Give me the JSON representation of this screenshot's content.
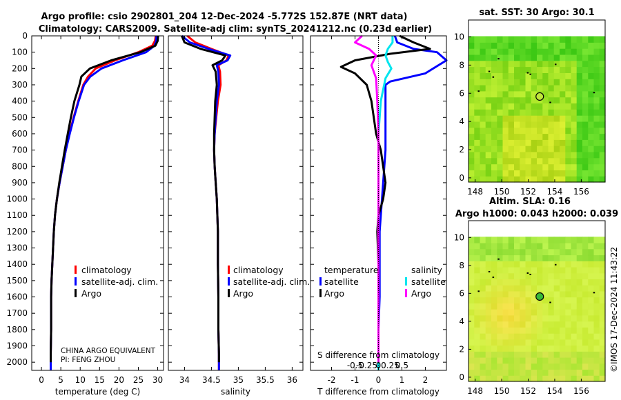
{
  "titles": {
    "line1": "Argo profile: csio 2902801_204 12-Dec-2024 -5.772S 152.87E (NRT data)",
    "line2": "Climatology: CARS2009. Satellite-adj clim: synTS_20241212.nc (0.23d earlier)",
    "map1": "sat. SST: 30 Argo: 30.1",
    "map2a": "Altim. SLA: 0.16",
    "map2b": "Argo h1000: 0.043 h2000: 0.039"
  },
  "credit": "©IMOS 17-Dec-2024 11:43:22",
  "note": {
    "line1": "CHINA ARGO EQUIVALENT",
    "line2": "PI: FENG ZHOU"
  },
  "legend_profiles": [
    "climatology",
    "satellite-adj. clim.",
    "Argo"
  ],
  "legend_diff": {
    "temp_title": "temperature",
    "sal_title": "salinity",
    "temp_items": [
      "satellite",
      "Argo"
    ],
    "sal_items": [
      "satellite",
      "Argo"
    ]
  },
  "colors": {
    "climatology": "#ff0000",
    "satellite": "#0000ff",
    "argo": "#000000",
    "sal_sat": "#00e5ee",
    "sal_argo": "#ff00ff"
  },
  "chart_data": [
    {
      "type": "line",
      "title": "",
      "xlabel": "temperature (deg C)",
      "ylabel": "",
      "xlim": [
        -2.5,
        31.5
      ],
      "ylim": [
        2050,
        0
      ],
      "x_ticks": [
        0,
        5,
        10,
        15,
        20,
        25,
        30
      ],
      "y_ticks": [
        0,
        100,
        200,
        300,
        400,
        500,
        600,
        700,
        800,
        900,
        1000,
        1100,
        1200,
        1300,
        1400,
        1500,
        1600,
        1700,
        1800,
        1900,
        2000
      ],
      "series": [
        {
          "name": "climatology",
          "color": "#ff0000",
          "x": [
            29.5,
            29.3,
            28.6,
            25.0,
            19.0,
            14.0,
            12.0,
            10.8,
            9.5,
            8.3,
            7.2,
            6.3,
            5.5,
            4.7,
            4.0,
            3.5,
            3.2,
            3.0,
            2.8,
            2.6,
            2.5,
            2.5,
            2.4,
            2.4
          ],
          "y": [
            0,
            30,
            60,
            100,
            150,
            200,
            250,
            300,
            400,
            500,
            600,
            700,
            800,
            900,
            1000,
            1100,
            1200,
            1300,
            1400,
            1500,
            1600,
            1800,
            1950,
            2050
          ]
        },
        {
          "name": "satellite-adj. clim.",
          "color": "#0000ff",
          "x": [
            29.7,
            29.6,
            29.2,
            27.0,
            21.0,
            15.5,
            12.6,
            11.0,
            9.6,
            8.4,
            7.3,
            6.3,
            5.5,
            4.7,
            4.0,
            3.5,
            3.2,
            3.0,
            2.8,
            2.6,
            2.5,
            2.5,
            2.4,
            2.4
          ],
          "y": [
            0,
            30,
            60,
            100,
            150,
            200,
            250,
            300,
            400,
            500,
            600,
            700,
            800,
            900,
            1000,
            1100,
            1200,
            1300,
            1400,
            1500,
            1600,
            1800,
            1950,
            2050
          ]
        },
        {
          "name": "Argo",
          "color": "#000000",
          "x": [
            30.1,
            30.0,
            29.4,
            25.5,
            18.0,
            12.5,
            10.3,
            9.8,
            8.5,
            7.6,
            6.8,
            6.0,
            5.3,
            4.6,
            4.0,
            3.5,
            3.2,
            3.0,
            2.8,
            2.6,
            2.5,
            2.5,
            2.4,
            2.4
          ],
          "y": [
            0,
            30,
            60,
            100,
            150,
            200,
            250,
            300,
            400,
            500,
            600,
            700,
            800,
            900,
            1000,
            1100,
            1200,
            1300,
            1400,
            1500,
            1600,
            1800,
            1950,
            2000
          ]
        }
      ]
    },
    {
      "type": "line",
      "title": "",
      "xlabel": "salinity",
      "ylabel": "",
      "xlim": [
        33.7,
        36.2
      ],
      "ylim": [
        2050,
        0
      ],
      "x_ticks": [
        34,
        34.5,
        35,
        35.5,
        36
      ],
      "series": [
        {
          "name": "climatology",
          "color": "#ff0000",
          "x": [
            34.05,
            34.2,
            34.5,
            34.82,
            34.78,
            34.63,
            34.66,
            34.67,
            34.62,
            34.59,
            34.56,
            34.55,
            34.56,
            34.58,
            34.6,
            34.62,
            34.62,
            34.63,
            34.63,
            34.64,
            34.64,
            34.64
          ],
          "y": [
            0,
            40,
            80,
            120,
            150,
            180,
            220,
            300,
            400,
            500,
            600,
            700,
            800,
            900,
            1000,
            1200,
            1400,
            1600,
            1800,
            1950,
            2000,
            2050
          ]
        },
        {
          "name": "satellite-adj. clim.",
          "color": "#0000ff",
          "x": [
            33.95,
            34.1,
            34.45,
            34.85,
            34.8,
            34.6,
            34.63,
            34.64,
            34.6,
            34.58,
            34.56,
            34.55,
            34.56,
            34.58,
            34.6,
            34.62,
            34.62,
            34.63,
            34.63,
            34.64,
            34.64,
            34.64
          ],
          "y": [
            0,
            40,
            80,
            120,
            150,
            180,
            220,
            300,
            400,
            500,
            600,
            700,
            800,
            900,
            1000,
            1200,
            1400,
            1600,
            1800,
            1950,
            2000,
            2050
          ]
        },
        {
          "name": "Argo",
          "color": "#000000",
          "x": [
            33.95,
            34.0,
            34.3,
            34.76,
            34.7,
            34.52,
            34.58,
            34.6,
            34.57,
            34.56,
            34.55,
            34.55,
            34.56,
            34.58,
            34.6,
            34.62,
            34.62,
            34.63,
            34.63,
            34.64,
            34.64
          ],
          "y": [
            0,
            40,
            80,
            120,
            150,
            180,
            220,
            300,
            400,
            500,
            600,
            700,
            800,
            900,
            1000,
            1200,
            1400,
            1600,
            1800,
            1950,
            2000
          ]
        }
      ]
    },
    {
      "type": "line",
      "title": "",
      "xlabel": "T difference from climatology",
      "ylabel": "",
      "xlim": [
        -2.9,
        2.9
      ],
      "ylim": [
        2050,
        0
      ],
      "x_ticks": [
        -2,
        -1,
        0,
        1,
        2
      ],
      "secondary_xlabel": "S difference from climatology",
      "secondary_x_ticks": [
        "-0.5",
        "-0.25",
        "0",
        "0.25",
        "0.5"
      ],
      "series": [
        {
          "name": "temperature satellite",
          "color": "#0000ff",
          "x": [
            0.7,
            0.8,
            1.5,
            2.5,
            2.9,
            2.0,
            0.5,
            0.3,
            0.3,
            0.3,
            0.3,
            0.3,
            0.25,
            0.2,
            0.15,
            0.1,
            0.05,
            0.05,
            0.05,
            0.0,
            0.0,
            0.0,
            0.0
          ],
          "y": [
            0,
            40,
            80,
            100,
            150,
            230,
            280,
            300,
            400,
            500,
            600,
            700,
            800,
            900,
            1000,
            1100,
            1200,
            1400,
            1600,
            1800,
            1950,
            2000,
            2050
          ]
        },
        {
          "name": "temperature Argo",
          "color": "#000000",
          "x": [
            0.9,
            1.5,
            2.2,
            0.5,
            -1.0,
            -1.6,
            -1.0,
            -0.5,
            -0.3,
            -0.2,
            -0.1,
            0.1,
            0.2,
            0.3,
            0.2,
            0.0,
            -0.05,
            0.0,
            0.0,
            0.0,
            0.0
          ],
          "y": [
            0,
            40,
            80,
            110,
            150,
            190,
            230,
            300,
            400,
            500,
            600,
            700,
            800,
            900,
            1000,
            1100,
            1200,
            1400,
            1600,
            1800,
            2000
          ]
        },
        {
          "name": "salinity satellite",
          "color": "#00e5ee",
          "x": [
            0.6,
            0.6,
            0.4,
            0.3,
            0.4,
            0.55,
            0.3,
            0.1,
            0.0,
            0.0,
            0.0,
            0.0,
            0.0,
            0.0
          ],
          "y": [
            0,
            40,
            80,
            120,
            160,
            200,
            260,
            400,
            600,
            800,
            1200,
            1600,
            2000,
            2050
          ]
        },
        {
          "name": "salinity Argo",
          "color": "#ff00ff",
          "x": [
            -0.7,
            -1.0,
            -0.4,
            -0.1,
            -0.3,
            -0.1,
            -0.05,
            0.0,
            0.0,
            0.0,
            0.0,
            0.0
          ],
          "y": [
            0,
            40,
            80,
            120,
            180,
            260,
            400,
            600,
            1000,
            1400,
            1800,
            2000
          ]
        }
      ]
    },
    {
      "type": "heatmap",
      "title": "sat. SST: 30 Argo: 30.1",
      "xlim": [
        147.5,
        157.8
      ],
      "ylim": [
        -0.3,
        11.2
      ],
      "x_ticks": [
        148,
        150,
        152,
        154,
        156
      ],
      "y_ticks": [
        0,
        2,
        4,
        6,
        8,
        10
      ],
      "marker": {
        "lon": 152.87,
        "lat": 5.772,
        "color": "#bfe63a"
      }
    },
    {
      "type": "heatmap",
      "title": "Altim. SLA: 0.16 / Argo h1000: 0.043 h2000: 0.039",
      "xlim": [
        147.5,
        157.8
      ],
      "ylim": [
        -0.3,
        11.2
      ],
      "x_ticks": [
        148,
        150,
        152,
        154,
        156
      ],
      "y_ticks": [
        0,
        2,
        4,
        6,
        8,
        10
      ],
      "marker": {
        "lon": 152.87,
        "lat": 5.772,
        "color": "#38b838"
      }
    }
  ]
}
